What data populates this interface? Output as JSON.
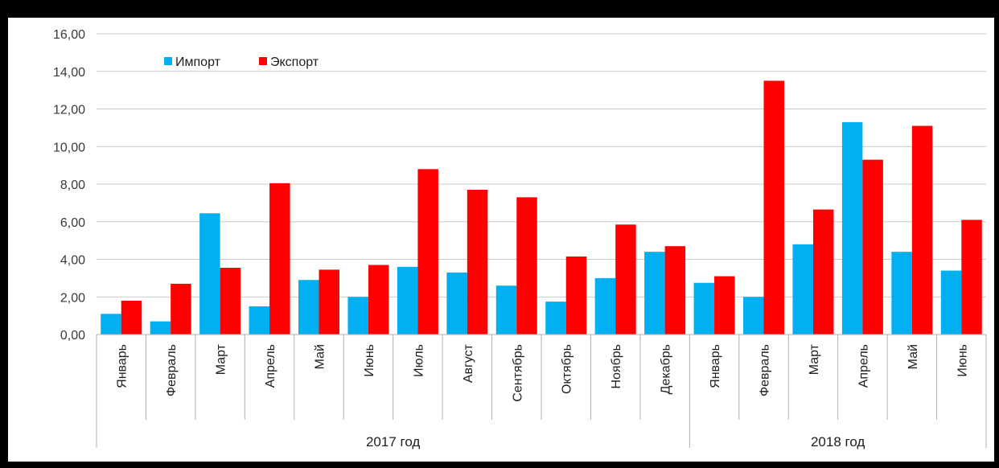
{
  "chart_data": {
    "type": "bar",
    "title": "",
    "xlabel": "",
    "ylabel": "",
    "ylim": [
      0,
      16
    ],
    "y_ticks": [
      "0,00",
      "2,00",
      "4,00",
      "6,00",
      "8,00",
      "10,00",
      "12,00",
      "14,00",
      "16,00"
    ],
    "grid": true,
    "legend_position": "top-left",
    "categories": [
      "Январь",
      "Февраль",
      "Март",
      "Апрель",
      "Май",
      "Июнь",
      "Июль",
      "Август",
      "Сентябрь",
      "Октябрь",
      "Ноябрь",
      "Декабрь",
      "Январь",
      "Февраль",
      "Март",
      "Апрель",
      "Май",
      "Июнь"
    ],
    "groups": [
      {
        "label": "2017 год",
        "count": 12
      },
      {
        "label": "2018 год",
        "count": 6
      }
    ],
    "series": [
      {
        "name": "Импорт",
        "color": "#00b0f0",
        "values": [
          1.1,
          0.7,
          6.45,
          1.5,
          2.9,
          2.0,
          3.6,
          3.3,
          2.6,
          1.75,
          3.0,
          4.4,
          2.75,
          2.0,
          4.8,
          11.3,
          4.4,
          3.4
        ]
      },
      {
        "name": "Экспорт",
        "color": "#ff0000",
        "values": [
          1.8,
          2.7,
          3.55,
          8.05,
          3.45,
          3.7,
          8.8,
          7.7,
          7.3,
          4.15,
          5.85,
          4.7,
          3.1,
          13.5,
          6.65,
          9.3,
          11.1,
          6.1
        ]
      }
    ]
  }
}
